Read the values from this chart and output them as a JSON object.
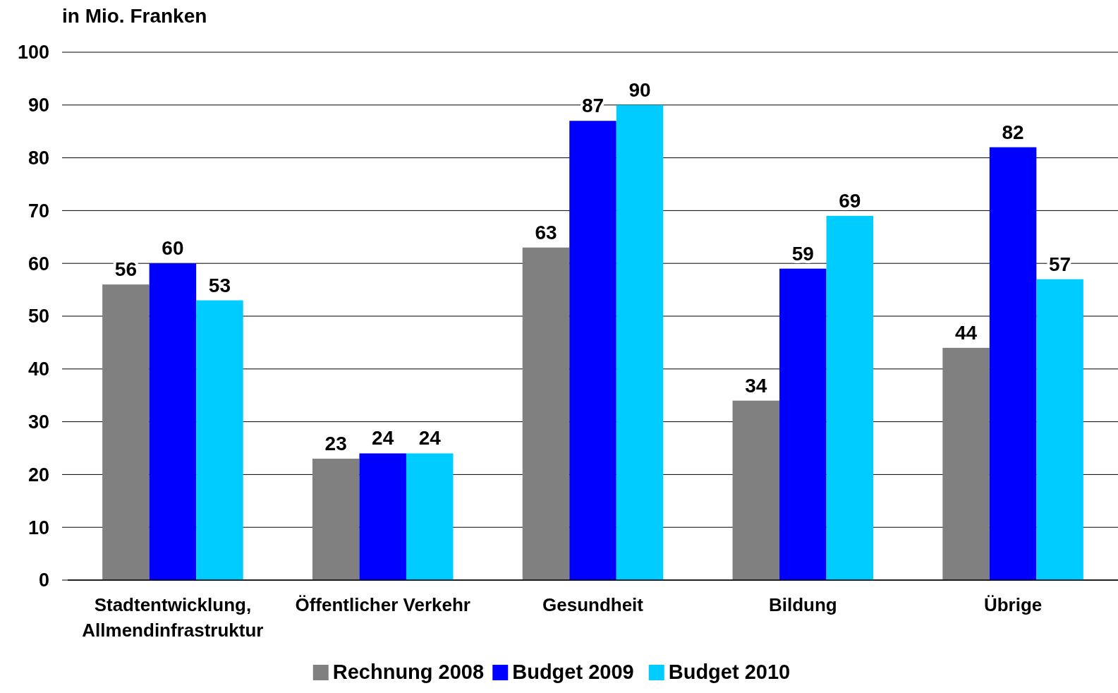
{
  "chart_data": {
    "type": "bar",
    "ylabel": "in Mio. Franken",
    "categories": [
      "Stadtentwicklung, Allmendinfrastruktur",
      "Öffentlicher Verkehr",
      "Gesundheit",
      "Bildung",
      "Übrige"
    ],
    "series": [
      {
        "name": "Rechnung 2008",
        "color": "#808080",
        "values": [
          56,
          23,
          63,
          34,
          44
        ]
      },
      {
        "name": "Budget 2009",
        "color": "#0000ff",
        "values": [
          60,
          24,
          87,
          59,
          82
        ]
      },
      {
        "name": "Budget 2010",
        "color": "#00ccff",
        "values": [
          53,
          24,
          90,
          69,
          57
        ]
      }
    ],
    "ylim": [
      0,
      100
    ],
    "yticks": [
      0,
      10,
      20,
      30,
      40,
      50,
      60,
      70,
      80,
      90,
      100
    ],
    "grid": "y",
    "legend": "bottom",
    "data_labels": true
  }
}
